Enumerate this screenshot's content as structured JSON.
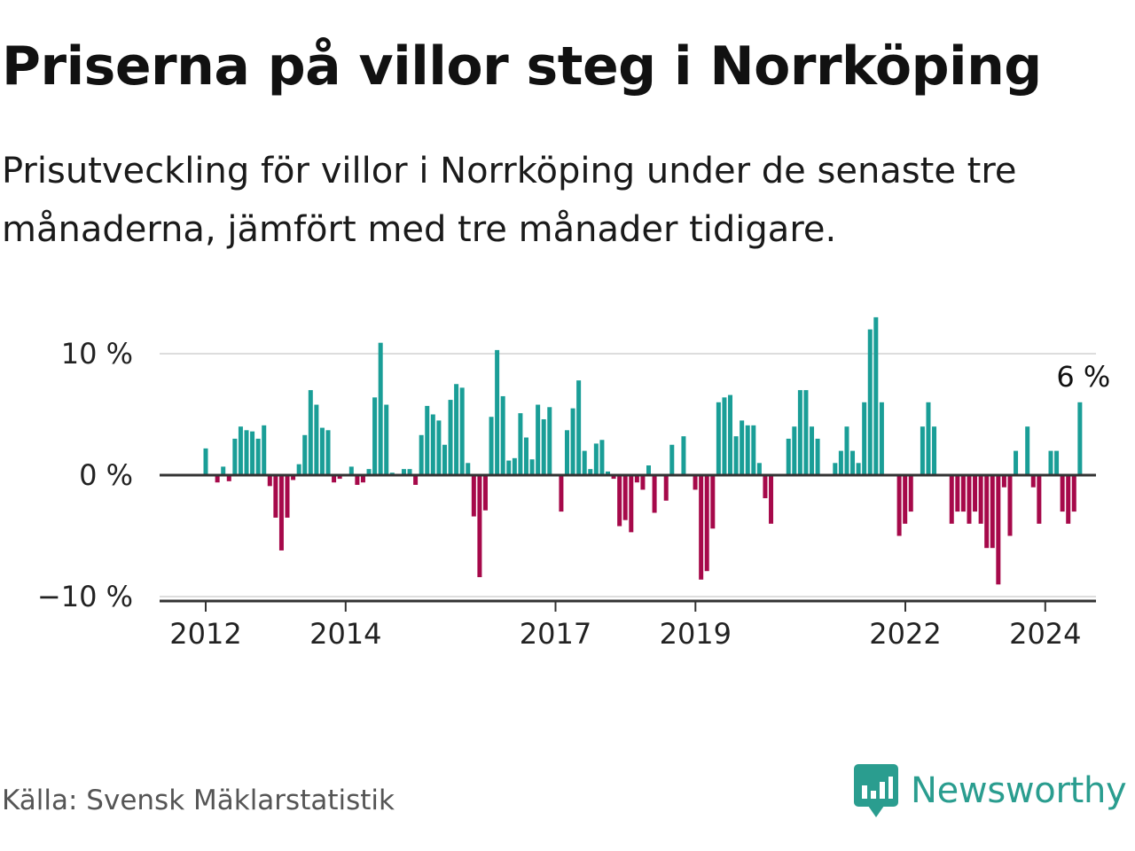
{
  "title": "Priserna på villor steg i Norrköping",
  "subtitle": "Prisutveckling för villor i Norrköping under de senaste tre månaderna, jämfört med tre månader tidigare.",
  "source": "Källa: Svensk Mäklarstatistik",
  "brand": "Newsworthy",
  "colors": {
    "positive": "#1a9e97",
    "negative": "#a6094a",
    "brand": "#2a9d8f"
  },
  "chart_data": {
    "type": "bar",
    "title": "Priserna på villor steg i Norrköping",
    "xlabel": "",
    "ylabel": "",
    "ylim": [
      -10,
      10
    ],
    "y_ticks": [
      {
        "value": 10,
        "label": "10 %"
      },
      {
        "value": 0,
        "label": "0 %"
      },
      {
        "value": -10,
        "label": "−10 %"
      }
    ],
    "x_ticks": [
      {
        "value": 2012,
        "label": "2012"
      },
      {
        "value": 2014,
        "label": "2014"
      },
      {
        "value": 2017,
        "label": "2017"
      },
      {
        "value": 2019,
        "label": "2019"
      },
      {
        "value": 2022,
        "label": "2022"
      },
      {
        "value": 2024,
        "label": "2024"
      }
    ],
    "x_start": 2012.0,
    "step": 0.0833,
    "annotation": {
      "text": "6 %",
      "value": 6
    },
    "values": [
      2.2,
      0,
      -0.6,
      0.7,
      -0.5,
      3,
      4,
      3.7,
      3.6,
      3,
      4.1,
      -0.9,
      -3.5,
      -6.2,
      -3.5,
      -0.4,
      0.9,
      3.3,
      7,
      5.8,
      3.9,
      3.7,
      -0.6,
      -0.3,
      0,
      0.7,
      -0.8,
      -0.6,
      0.5,
      6.4,
      10.9,
      5.8,
      0.2,
      0,
      0.5,
      0.5,
      -0.8,
      3.3,
      5.7,
      5,
      4.5,
      2.5,
      6.2,
      7.5,
      7.2,
      1,
      -3.4,
      -8.4,
      -2.9,
      4.8,
      10.3,
      6.5,
      1.2,
      1.4,
      5.1,
      3.1,
      1.3,
      5.8,
      4.6,
      5.6,
      0,
      -3,
      3.7,
      5.5,
      7.8,
      2,
      0.5,
      2.6,
      2.9,
      0.3,
      -0.3,
      -4.2,
      -3.7,
      -4.7,
      -0.6,
      -1.2,
      0.8,
      -3.1,
      0,
      -2.1,
      2.5,
      0,
      3.2,
      0,
      -1.2,
      -8.6,
      -7.9,
      -4.4,
      6,
      6.4,
      6.6,
      3.2,
      4.5,
      4.1,
      4.1,
      1,
      -1.9,
      -4,
      0,
      0,
      3,
      4,
      7,
      7,
      4,
      3,
      0,
      0,
      1,
      2,
      4,
      2,
      1,
      6,
      12,
      13,
      6,
      0,
      0,
      -5,
      -4,
      -3,
      0,
      4,
      6,
      4,
      0,
      0,
      -4,
      -3,
      -3,
      -4,
      -3,
      -4,
      -6,
      -6,
      -9,
      -1,
      -5,
      2,
      0,
      4,
      -1,
      -4,
      0,
      2,
      2,
      -3,
      -4,
      -3,
      6
    ]
  }
}
